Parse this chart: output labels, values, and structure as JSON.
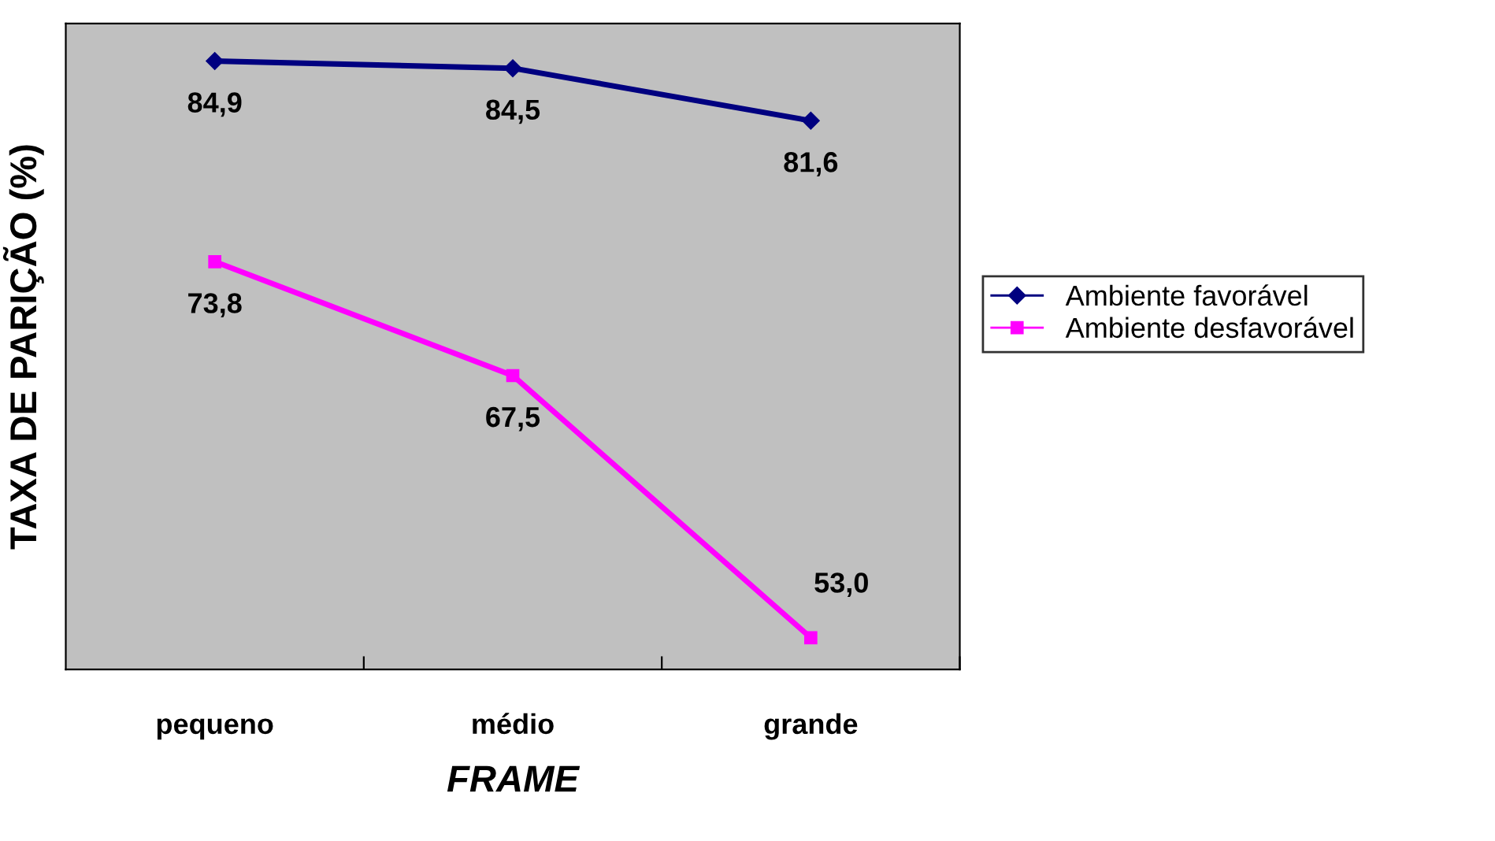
{
  "chart_data": {
    "type": "line",
    "xlabel": "FRAME",
    "ylabel": "TAXA DE PARIÇÃO (%)",
    "categories": [
      "pequeno",
      "médio",
      "grande"
    ],
    "series": [
      {
        "name": "Ambiente favorável",
        "color": "#000080",
        "values": [
          84.9,
          84.5,
          81.6
        ],
        "value_labels": [
          "84,9",
          "84,5",
          "81,6"
        ],
        "marker": "diamond"
      },
      {
        "name": "Ambiente desfavorável",
        "color": "#ff00ff",
        "values": [
          73.8,
          67.5,
          53.0
        ],
        "value_labels": [
          "73,8",
          "67,5",
          "53,0"
        ],
        "marker": "square"
      }
    ],
    "tick_labels": "x",
    "legend": "right",
    "grid": false,
    "line_style": "solid"
  }
}
